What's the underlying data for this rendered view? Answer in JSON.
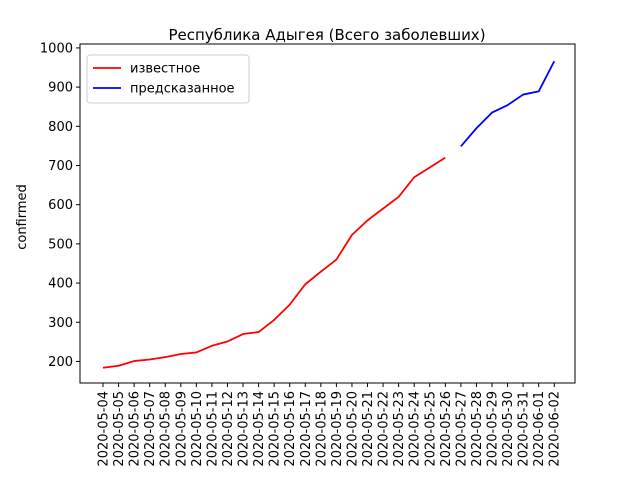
{
  "chart_data": {
    "type": "line",
    "title": "Республика Адыгея (Всего заболевших)",
    "xlabel": "",
    "ylabel": "confirmed",
    "ylim": [
      145,
      1010
    ],
    "yticks": [
      200,
      300,
      400,
      500,
      600,
      700,
      800,
      900,
      1000
    ],
    "grid": false,
    "legend_position": "top-left",
    "categories": [
      "2020-05-04",
      "2020-05-05",
      "2020-05-06",
      "2020-05-07",
      "2020-05-08",
      "2020-05-09",
      "2020-05-10",
      "2020-05-11",
      "2020-05-12",
      "2020-05-13",
      "2020-05-14",
      "2020-05-15",
      "2020-05-16",
      "2020-05-17",
      "2020-05-18",
      "2020-05-19",
      "2020-05-20",
      "2020-05-21",
      "2020-05-22",
      "2020-05-23",
      "2020-05-24",
      "2020-05-25",
      "2020-05-26",
      "2020-05-27",
      "2020-05-28",
      "2020-05-29",
      "2020-05-30",
      "2020-05-31",
      "2020-06-01",
      "2020-06-02"
    ],
    "series": [
      {
        "name": "известное",
        "color": "#ff0000",
        "x": [
          "2020-05-04",
          "2020-05-05",
          "2020-05-06",
          "2020-05-07",
          "2020-05-08",
          "2020-05-09",
          "2020-05-10",
          "2020-05-11",
          "2020-05-12",
          "2020-05-13",
          "2020-05-14",
          "2020-05-15",
          "2020-05-16",
          "2020-05-17",
          "2020-05-18",
          "2020-05-19",
          "2020-05-20",
          "2020-05-21",
          "2020-05-22",
          "2020-05-23",
          "2020-05-24",
          "2020-05-25",
          "2020-05-26"
        ],
        "values": [
          184,
          189,
          201,
          205,
          211,
          219,
          223,
          240,
          251,
          270,
          275,
          306,
          345,
          397,
          429,
          460,
          523,
          560,
          590,
          620,
          670,
          695,
          720
        ]
      },
      {
        "name": "предсказанное",
        "color": "#0000ff",
        "x": [
          "2020-05-27",
          "2020-05-28",
          "2020-05-29",
          "2020-05-30",
          "2020-05-31",
          "2020-06-01",
          "2020-06-02"
        ],
        "values": [
          749,
          795,
          835,
          854,
          881,
          889,
          966
        ]
      }
    ]
  }
}
